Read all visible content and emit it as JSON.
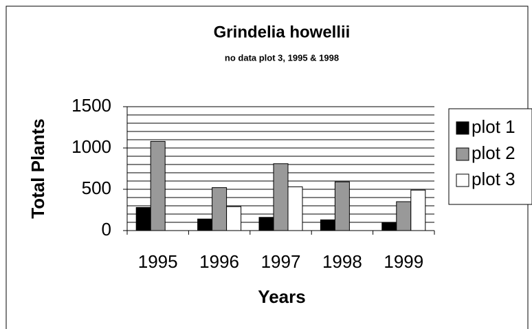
{
  "chart_data": {
    "type": "bar",
    "title": "Grindelia howellii",
    "subtitle": "no data plot 3, 1995 & 1998",
    "x_label": "Years",
    "y_label": "Total Plants",
    "categories": [
      "1995",
      "1996",
      "1997",
      "1998",
      "1999"
    ],
    "series": [
      {
        "name": "plot 1",
        "color": "#000000",
        "values": [
          280,
          140,
          160,
          130,
          100
        ]
      },
      {
        "name": "plot 2",
        "color": "#999999",
        "values": [
          1080,
          520,
          810,
          590,
          350
        ]
      },
      {
        "name": "plot 3",
        "color": "#ffffff",
        "values": [
          null,
          290,
          530,
          null,
          490
        ]
      }
    ],
    "ylim": [
      0,
      1500
    ],
    "yticks": [
      0,
      500,
      1000,
      1500
    ],
    "minor_yticks": [
      100,
      200,
      300,
      400,
      600,
      700,
      800,
      900,
      1100,
      1200,
      1300,
      1400
    ],
    "grid": true,
    "legend": "right"
  }
}
